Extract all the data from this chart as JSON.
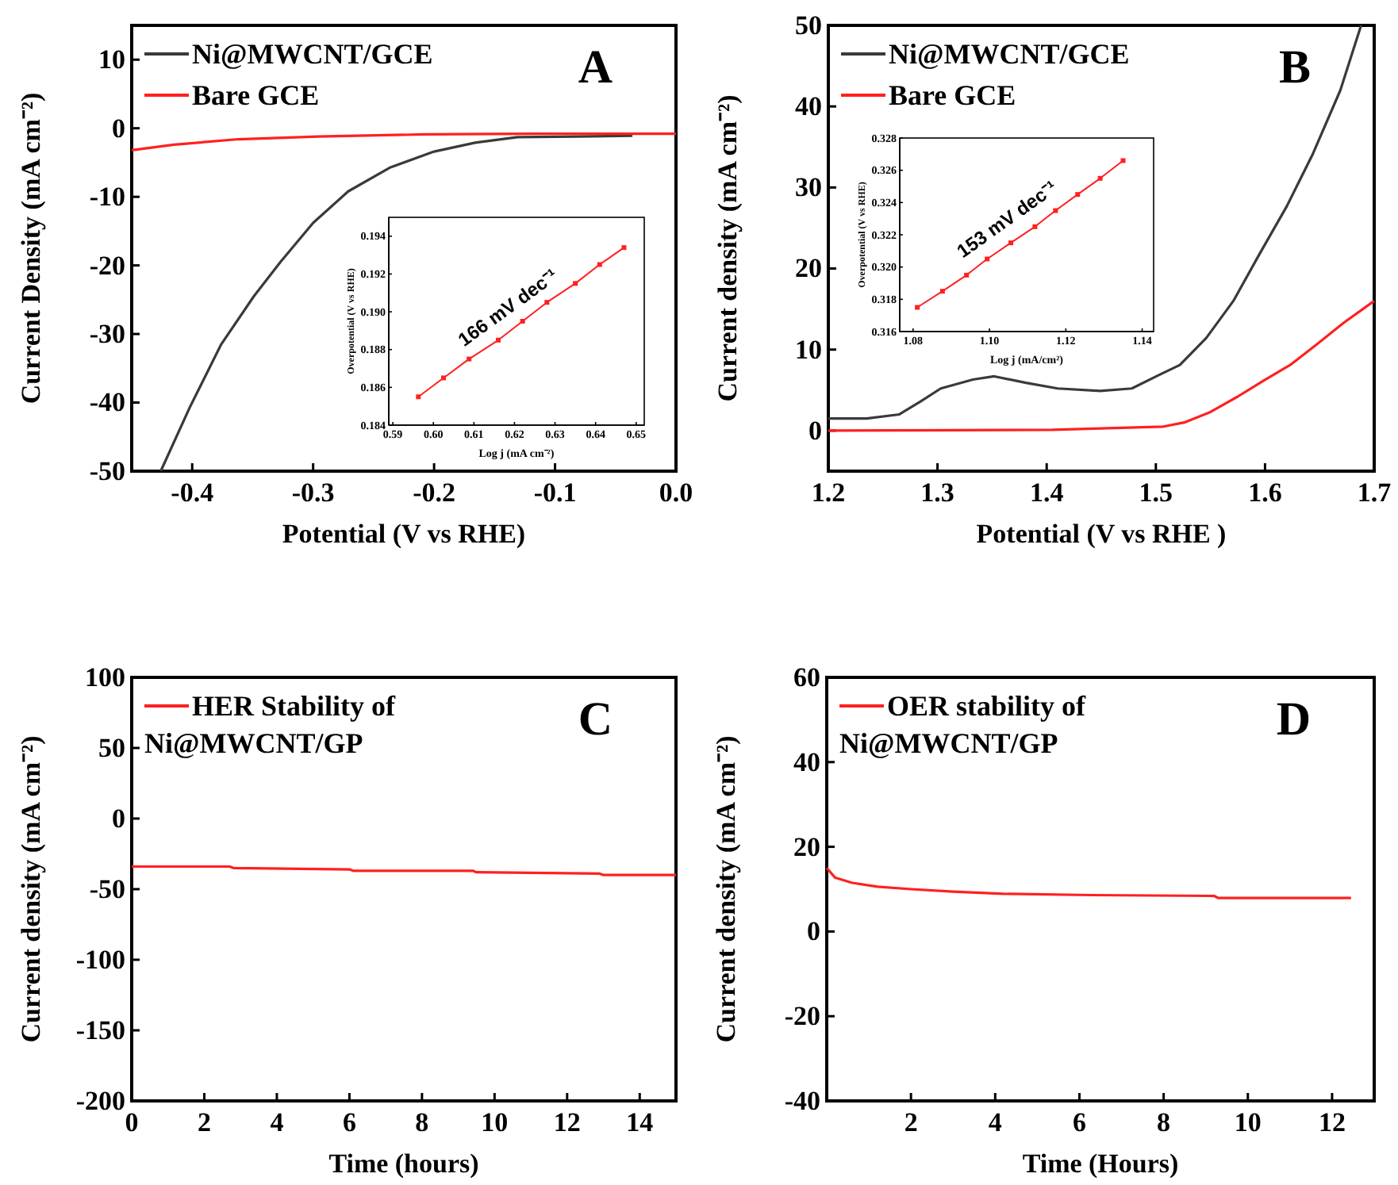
{
  "chart_data": [
    {
      "type": "line",
      "xlabel": "Potential  (V vs RHE)",
      "ylabel": "Current Density (mA cm⁻²)",
      "annotations": [
        "A"
      ],
      "xlim": [
        -0.45,
        0
      ],
      "ylim": [
        -50,
        15
      ],
      "xticks": [
        -0.4,
        -0.3,
        -0.2,
        -0.1,
        {
          "value": 0,
          "label": "0.0"
        }
      ],
      "yticks": [
        -50,
        -40,
        -30,
        -20,
        -10,
        0,
        10
      ],
      "legend": "top left",
      "series": [
        {
          "name": "Ni@MWCNT/GCE",
          "color": "#3a3a3a",
          "x": [
            -0.426,
            -0.402,
            -0.376,
            -0.349,
            -0.327,
            -0.3,
            -0.271,
            -0.236,
            -0.2,
            -0.166,
            -0.131,
            -0.082,
            -0.036
          ],
          "values": [
            -50,
            -40.7,
            -31.5,
            -24.5,
            -19.5,
            -13.8,
            -9.2,
            -5.7,
            -3.4,
            -2.1,
            -1.3,
            -1.2,
            -1.1
          ]
        },
        {
          "name": "Bare GCE",
          "color": "#ff2020",
          "x": [
            -0.45,
            -0.415,
            -0.362,
            -0.296,
            -0.208,
            -0.121,
            0
          ],
          "values": [
            -3.2,
            -2.4,
            -1.6,
            -1.2,
            -0.9,
            -0.8,
            -0.8
          ]
        }
      ]
    },
    {
      "type": "line",
      "xlabel": "Log j (mA cm⁻²)",
      "ylabel": "Overpotential (V vs RHE)",
      "annotations": [
        "166 mV dec⁻¹"
      ],
      "xlim": [
        0.589,
        0.652
      ],
      "ylim": [
        0.184,
        0.195
      ],
      "marker": "square",
      "xticks": [
        {
          "value": 0.59,
          "label": "0.59"
        },
        {
          "value": 0.6,
          "label": "0.60"
        },
        {
          "value": 0.61,
          "label": "0.61"
        },
        {
          "value": 0.62,
          "label": "0.62"
        },
        {
          "value": 0.63,
          "label": "0.63"
        },
        {
          "value": 0.64,
          "label": "0.64"
        },
        {
          "value": 0.65,
          "label": "0.65"
        }
      ],
      "yticks": [
        {
          "value": 0.184,
          "label": "0.184"
        },
        {
          "value": 0.186,
          "label": "0.186"
        },
        {
          "value": 0.188,
          "label": "0.188"
        },
        {
          "value": 0.19,
          "label": "0.190"
        },
        {
          "value": 0.192,
          "label": "0.192"
        },
        {
          "value": 0.194,
          "label": "0.194"
        }
      ],
      "series": [
        {
          "color": "#ff2020",
          "x": [
            0.5963,
            0.6025,
            0.6088,
            0.616,
            0.622,
            0.628,
            0.635,
            0.641,
            0.647
          ],
          "values": [
            0.1855,
            0.1865,
            0.1875,
            0.1885,
            0.1895,
            0.1905,
            0.1915,
            0.1925,
            0.1934
          ]
        }
      ]
    },
    {
      "type": "line",
      "xlabel": "Potential (V vs RHE )",
      "ylabel": "Current density (mA cm⁻²)",
      "annotations": [
        "B"
      ],
      "xlim": [
        1.2,
        1.7
      ],
      "ylim": [
        -5,
        50
      ],
      "xticks": [
        1.2,
        1.3,
        1.4,
        1.5,
        1.6,
        1.7
      ],
      "yticks": [
        0,
        10,
        20,
        30,
        40,
        50
      ],
      "legend": "top left",
      "series": [
        {
          "name": "Ni@MWCNT/GCE",
          "color": "#3a3a3a",
          "x": [
            1.2,
            1.235,
            1.265,
            1.2845,
            1.303,
            1.3325,
            1.352,
            1.381,
            1.41,
            1.449,
            1.478,
            1.502,
            1.522,
            1.546,
            1.571,
            1.595,
            1.62,
            1.644,
            1.669,
            1.688
          ],
          "values": [
            1.5,
            1.5,
            2,
            3.6,
            5.2,
            6.3,
            6.7,
            5.9,
            5.2,
            4.9,
            5.2,
            6.8,
            8.1,
            11.4,
            16,
            21.8,
            27.7,
            34.2,
            42,
            50
          ]
        },
        {
          "name": "Bare GCE",
          "color": "#ff2020",
          "x": [
            1.2,
            1.405,
            1.507,
            1.526,
            1.55,
            1.575,
            1.599,
            1.623,
            1.648,
            1.672,
            1.7
          ],
          "values": [
            0,
            0.1,
            0.5,
            1,
            2.3,
            4.2,
            6.2,
            8.1,
            10.7,
            13.3,
            16
          ]
        }
      ]
    },
    {
      "type": "line",
      "xlabel": "Log j (mA/cm²)",
      "ylabel": "Overpotential (V vs RHE)",
      "annotations": [
        "153 mV dec⁻¹"
      ],
      "xlim": [
        1.0765,
        1.143
      ],
      "ylim": [
        0.316,
        0.328
      ],
      "marker": "square",
      "xticks": [
        {
          "value": 1.08,
          "label": "1.08"
        },
        {
          "value": 1.1,
          "label": "1.10"
        },
        {
          "value": 1.12,
          "label": "1.12"
        },
        {
          "value": 1.14,
          "label": "1.14"
        }
      ],
      "yticks": [
        {
          "value": 0.316,
          "label": "0.316"
        },
        {
          "value": 0.318,
          "label": "0.318"
        },
        {
          "value": 0.32,
          "label": "0.320"
        },
        {
          "value": 0.322,
          "label": "0.322"
        },
        {
          "value": 0.324,
          "label": "0.324"
        },
        {
          "value": 0.326,
          "label": "0.326"
        },
        {
          "value": 0.328,
          "label": "0.328"
        }
      ],
      "series": [
        {
          "color": "#ff2020",
          "x": [
            1.0811,
            1.0877,
            1.094,
            1.0994,
            1.1056,
            1.1119,
            1.1173,
            1.1231,
            1.129,
            1.135
          ],
          "values": [
            0.3175,
            0.3185,
            0.3195,
            0.3205,
            0.3215,
            0.3225,
            0.3235,
            0.3245,
            0.3255,
            0.3266
          ]
        }
      ]
    },
    {
      "type": "line",
      "xlabel": "Time (hours)",
      "ylabel": "Current density (mA cm⁻²)",
      "annotations": [
        "C"
      ],
      "xlim": [
        0,
        15
      ],
      "ylim": [
        -200,
        100
      ],
      "xticks": [
        0,
        2,
        4,
        6,
        8,
        10,
        12,
        14
      ],
      "yticks": [
        -200,
        -150,
        -100,
        -50,
        0,
        50,
        100
      ],
      "legend": "top left",
      "series": [
        {
          "name": "HER Stability of Ni@MWCNT/GP",
          "color": "#ff2020",
          "x": [
            0,
            2.7,
            2.8,
            6,
            6.1,
            9.4,
            9.5,
            12.9,
            13,
            15
          ],
          "values": [
            -34,
            -34,
            -35,
            -36,
            -37,
            -37,
            -38,
            -39,
            -40,
            -40
          ]
        }
      ]
    },
    {
      "type": "line",
      "xlabel": "Time (Hours)",
      "ylabel": "Current density (mA cm⁻²)",
      "annotations": [
        "D"
      ],
      "xlim": [
        0,
        13
      ],
      "ylim": [
        -40,
        60
      ],
      "xticks": [
        2,
        4,
        6,
        8,
        10,
        12
      ],
      "yticks": [
        -40,
        -20,
        0,
        20,
        40,
        60
      ],
      "legend": "top left",
      "series": [
        {
          "name": "OER stability of Ni@MWCNT/GP",
          "color": "#ff2020",
          "x": [
            0,
            0.2,
            0.6,
            1.2,
            2,
            3,
            4.2,
            6.3,
            9.2,
            9.3,
            12.45
          ],
          "values": [
            15,
            12.7,
            11.5,
            10.6,
            10,
            9.4,
            8.9,
            8.6,
            8.4,
            7.9,
            7.9
          ]
        }
      ]
    }
  ]
}
